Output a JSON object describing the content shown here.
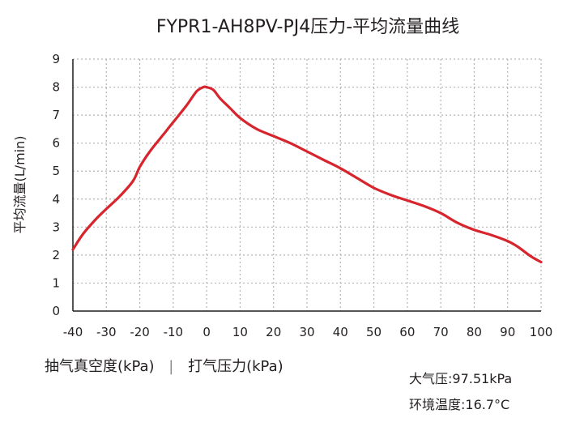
{
  "chart_data": {
    "type": "line",
    "title": "FYPR1-AH8PV-PJ4压力-平均流量曲线",
    "ylabel": "平均流量(L/min)",
    "xlabel_left": "抽气真空度(kPa)",
    "xlabel_separator": "|",
    "xlabel_right": "打气压力(kPa)",
    "xlim": [
      -40,
      100
    ],
    "ylim": [
      0,
      9
    ],
    "x_ticks": [
      "-40",
      "-30",
      "-20",
      "-10",
      "0",
      "10",
      "20",
      "30",
      "40",
      "50",
      "60",
      "70",
      "80",
      "90",
      "100"
    ],
    "y_ticks": [
      "0",
      "1",
      "2",
      "3",
      "4",
      "5",
      "6",
      "7",
      "8",
      "9"
    ],
    "grid": true,
    "line_color": "#d7252e",
    "series": [
      {
        "x": [
          -40,
          -37,
          -33,
          -30,
          -26,
          -22,
          -20,
          -17,
          -13,
          -10,
          -6,
          -3,
          -1,
          0,
          2,
          4,
          7,
          10,
          15,
          20,
          25,
          30,
          35,
          40,
          45,
          50,
          55,
          60,
          65,
          70,
          75,
          80,
          85,
          90,
          93,
          97,
          100
        ],
        "y": [
          2.2,
          2.75,
          3.3,
          3.65,
          4.1,
          4.65,
          5.15,
          5.7,
          6.3,
          6.75,
          7.35,
          7.85,
          8.0,
          8.0,
          7.9,
          7.6,
          7.25,
          6.9,
          6.5,
          6.25,
          6.0,
          5.7,
          5.4,
          5.1,
          4.75,
          4.4,
          4.15,
          3.95,
          3.75,
          3.5,
          3.15,
          2.9,
          2.72,
          2.5,
          2.3,
          1.95,
          1.75
        ]
      }
    ],
    "conditions": {
      "pressure": "大气压:97.51kPa",
      "temperature": "环境温度:16.7°C"
    }
  }
}
